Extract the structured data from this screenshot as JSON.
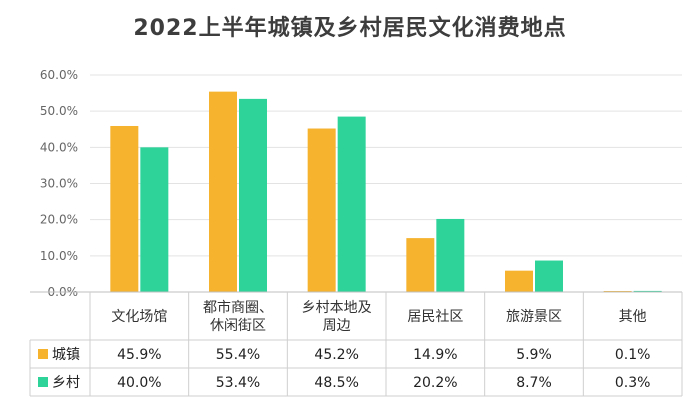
{
  "chart_data": {
    "type": "bar",
    "title": "2022上半年城镇及乡村居民文化消费地点",
    "categories": [
      [
        "文化场馆"
      ],
      [
        "都市商圈、",
        "休闲街区"
      ],
      [
        "乡村本地及",
        "周边"
      ],
      [
        "居民社区"
      ],
      [
        "旅游景区"
      ],
      [
        "其他"
      ]
    ],
    "series": [
      {
        "name": "城镇",
        "values": [
          45.9,
          55.4,
          45.2,
          14.9,
          5.9,
          0.1
        ],
        "labels": [
          "45.9%",
          "55.4%",
          "45.2%",
          "14.9%",
          "5.9%",
          "0.1%"
        ],
        "color": "#F5B32E"
      },
      {
        "name": "乡村",
        "values": [
          40.0,
          53.4,
          48.5,
          20.2,
          8.7,
          0.3
        ],
        "labels": [
          "40.0%",
          "53.4%",
          "48.5%",
          "20.2%",
          "8.7%",
          "0.3%"
        ],
        "color": "#2ED39A"
      }
    ],
    "yticks": [
      "0.0%",
      "10.0%",
      "20.0%",
      "30.0%",
      "40.0%",
      "50.0%",
      "60.0%"
    ],
    "ylim": [
      0,
      60
    ],
    "grid": true,
    "legend": "data-table"
  }
}
